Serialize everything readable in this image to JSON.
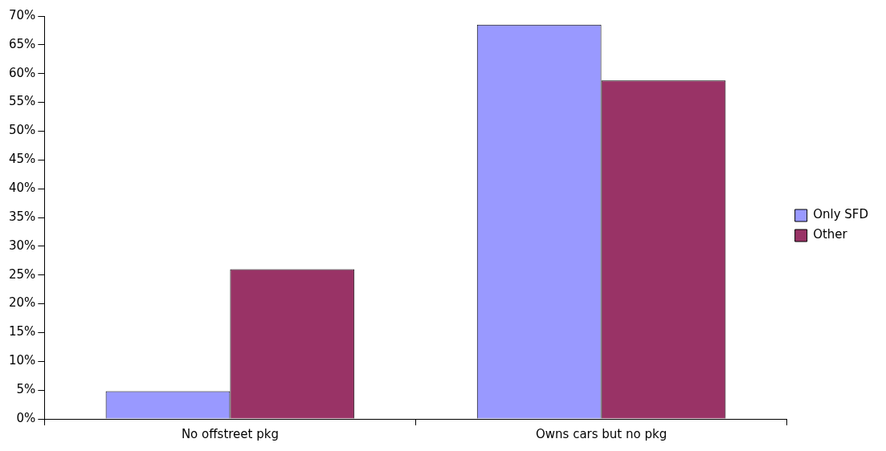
{
  "chart_data": {
    "type": "bar",
    "categories": [
      "No offstreet pkg",
      "Owns cars but no pkg"
    ],
    "series": [
      {
        "name": "Only SFD",
        "color": "#9999ff",
        "values": [
          4.8,
          68.5
        ]
      },
      {
        "name": "Other",
        "color": "#993366",
        "values": [
          26,
          58.8
        ]
      }
    ],
    "ylim": [
      0,
      70
    ],
    "yticks": [
      {
        "value": 0,
        "label": "0%"
      },
      {
        "value": 5,
        "label": "5%"
      },
      {
        "value": 10,
        "label": "10%"
      },
      {
        "value": 15,
        "label": "15%"
      },
      {
        "value": 20,
        "label": "20%"
      },
      {
        "value": 25,
        "label": "25%"
      },
      {
        "value": 30,
        "label": "30%"
      },
      {
        "value": 35,
        "label": "35%"
      },
      {
        "value": 40,
        "label": "40%"
      },
      {
        "value": 45,
        "label": "45%"
      },
      {
        "value": 50,
        "label": "50%"
      },
      {
        "value": 55,
        "label": "55%"
      },
      {
        "value": 60,
        "label": "60%"
      },
      {
        "value": 65,
        "label": "65%"
      },
      {
        "value": 70,
        "label": "70%"
      }
    ],
    "grid": false,
    "legend": "right"
  }
}
